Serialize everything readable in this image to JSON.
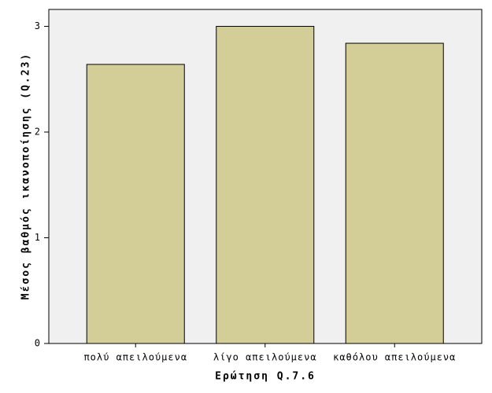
{
  "chart_data": {
    "type": "bar",
    "categories": [
      "πολύ απειλούμενα",
      "λίγο απειλούμενα",
      "καθόλου απειλούμενα"
    ],
    "values": [
      2.64,
      3.0,
      2.84
    ],
    "color": "#d3ce97",
    "x_label": "Ερώτηση Q.7.6",
    "y_label": "Μέσος βαθμός ικανοποίησης (Q.23)",
    "ylim": [
      0,
      3.16
    ],
    "yticks": [
      0,
      1,
      2,
      3
    ]
  }
}
